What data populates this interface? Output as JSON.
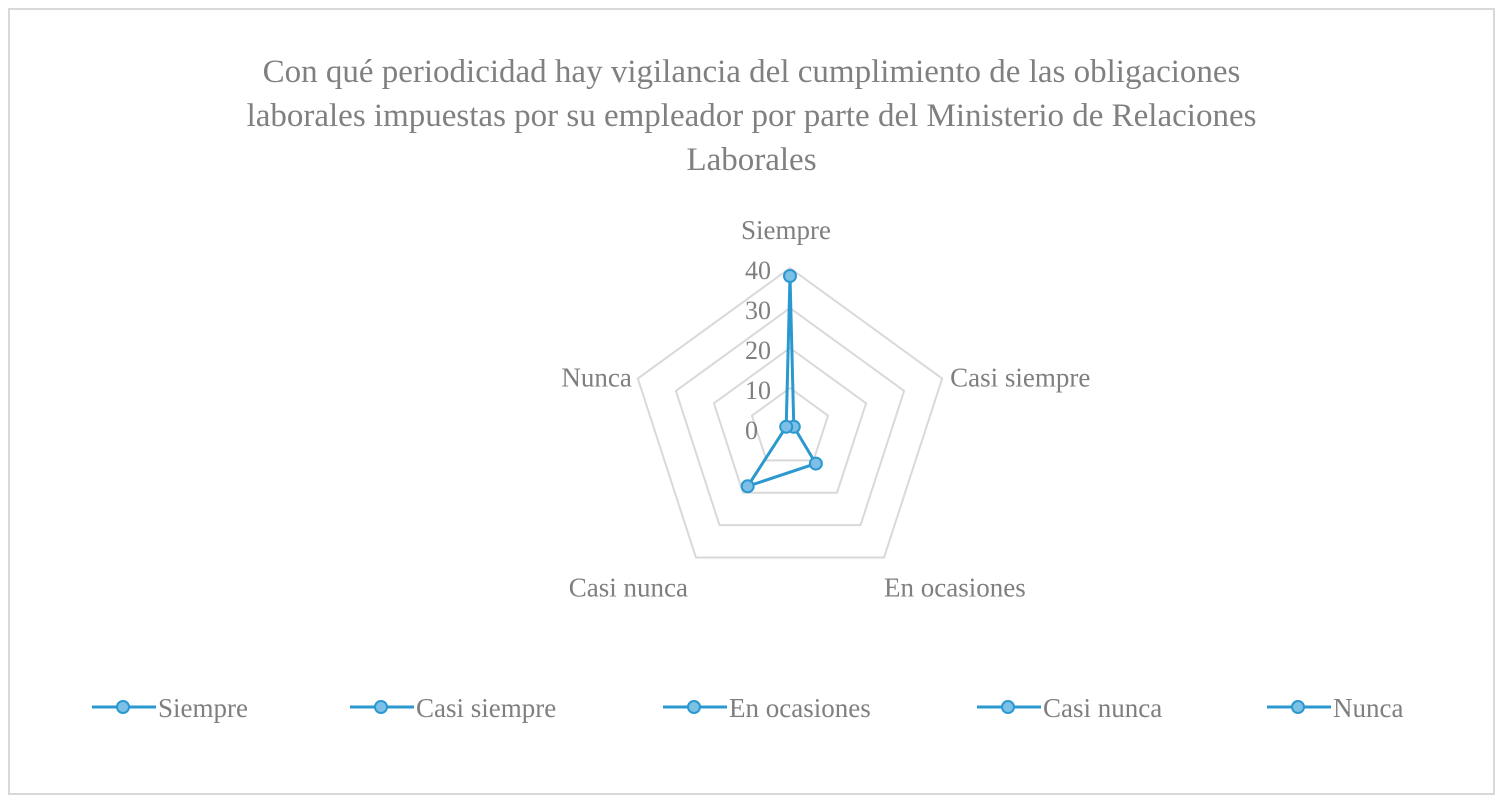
{
  "chart_data": {
    "type": "radar",
    "title_lines": [
      "Con qué periodicidad hay vigilancia del cumplimiento de las obligaciones",
      "laborales impuestas por su empleador por parte del Ministerio de Relaciones",
      "Laborales"
    ],
    "categories": [
      "Siempre",
      "Casi siempre",
      "En ocasiones",
      "Casi nunca",
      "Nunca"
    ],
    "values": [
      38,
      1,
      11,
      18,
      1
    ],
    "r_ticks": [
      "0",
      "10",
      "20",
      "30",
      "40"
    ],
    "rlim": [
      0,
      40
    ],
    "grid": true,
    "legend_placement": "bottom",
    "legend": [
      "Siempre",
      "Casi siempre",
      "En ocasiones",
      "Casi nunca",
      "Nunca"
    ],
    "colors": {
      "series": "#2b98d0",
      "marker_fill": "#7cc0e6",
      "grid": "#d9d9d9",
      "text": "#808080"
    }
  }
}
